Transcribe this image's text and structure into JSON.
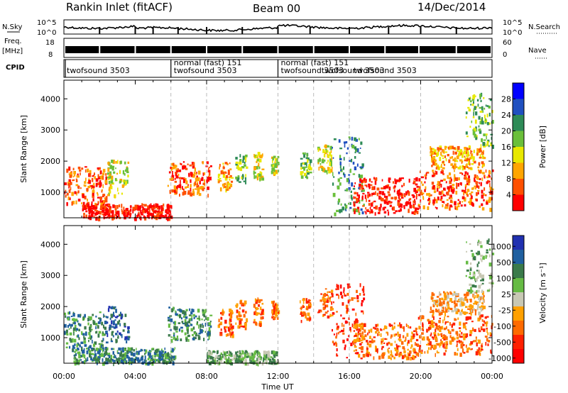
{
  "header": {
    "station": "Rankin Inlet (fitACF)",
    "beam": "Beam 00",
    "date": "14/Dec/2014"
  },
  "strip_labels": {
    "nsky": "N.Sky",
    "freq": "Freq.",
    "freq_unit": "[MHz]",
    "cpid": "CPID",
    "nsearch": "N.Search",
    "nave": "Nave",
    "nsky_top": "10^5",
    "nsky_bottom": "10^0",
    "nsearch_top": "10^5",
    "nsearch_bottom": "10^0",
    "freq_top": "18",
    "freq_bottom": "8",
    "nave_top": "60",
    "nave_bottom": "0"
  },
  "cpid_segments": [
    {
      "label": "twofsound 3503",
      "start_hour": 0.0
    },
    {
      "label": "normal (fast) 151",
      "start_hour": 6.0
    },
    {
      "label": "twofsound 3503",
      "start_hour": 6.0
    },
    {
      "label": "normal (fast) 151",
      "start_hour": 12.0
    },
    {
      "label": "twofsound 3503",
      "start_hour": 12.0
    },
    {
      "label": "twofsound 3503",
      "start_hour": 14.2
    },
    {
      "label": "twofsound 3503",
      "start_hour": 16.0
    }
  ],
  "chart_data": [
    {
      "type": "heatmap",
      "panel": "power",
      "ylabel": "Slant Range [km]",
      "xlabel": "",
      "xlim_hours": [
        0,
        24
      ],
      "ylim": [
        180,
        4600
      ],
      "x_ticks": [],
      "y_ticks": [
        1000,
        2000,
        3000,
        4000
      ],
      "colorbar": {
        "label": "Power [dB]",
        "ticks": [
          "4",
          "8",
          "12",
          "16",
          "20",
          "24",
          "28"
        ],
        "colors": [
          "#0000ff",
          "#2050c0",
          "#2e8b57",
          "#6abf3a",
          "#e8e800",
          "#ffa500",
          "#ff5000",
          "#ff0000"
        ]
      },
      "regions": [
        {
          "t0": 0.0,
          "t1": 2.4,
          "r0": 650,
          "r1": 1850,
          "level": 6
        },
        {
          "t0": 2.4,
          "t1": 3.6,
          "r0": 900,
          "r1": 2050,
          "level": 4
        },
        {
          "t0": 1.0,
          "t1": 6.0,
          "r0": 200,
          "r1": 650,
          "level": 7
        },
        {
          "t0": 5.8,
          "t1": 8.2,
          "r0": 950,
          "r1": 2000,
          "level": 6
        },
        {
          "t0": 8.6,
          "t1": 9.4,
          "r0": 1100,
          "r1": 2000,
          "level": 5
        },
        {
          "t0": 9.6,
          "t1": 10.2,
          "r0": 1350,
          "r1": 2250,
          "level": 3
        },
        {
          "t0": 10.6,
          "t1": 11.1,
          "r0": 1450,
          "r1": 2300,
          "level": 4
        },
        {
          "t0": 11.6,
          "t1": 12.0,
          "r0": 1600,
          "r1": 2200,
          "level": 4
        },
        {
          "t0": 13.2,
          "t1": 13.8,
          "r0": 1500,
          "r1": 2300,
          "level": 3
        },
        {
          "t0": 14.2,
          "t1": 15.0,
          "r0": 1700,
          "r1": 2600,
          "level": 4
        },
        {
          "t0": 15.0,
          "t1": 16.8,
          "r0": 350,
          "r1": 2800,
          "level": 2
        },
        {
          "t0": 16.2,
          "t1": 19.8,
          "r0": 350,
          "r1": 1500,
          "level": 7
        },
        {
          "t0": 19.8,
          "t1": 24.0,
          "r0": 500,
          "r1": 1750,
          "level": 6
        },
        {
          "t0": 20.5,
          "t1": 23.5,
          "r0": 1800,
          "r1": 2500,
          "level": 5
        },
        {
          "t0": 22.5,
          "t1": 24.0,
          "r0": 2500,
          "r1": 4200,
          "level": 3
        }
      ]
    },
    {
      "type": "heatmap",
      "panel": "velocity",
      "ylabel": "Slant Range [km]",
      "xlabel": "Time UT",
      "xlim_hours": [
        0,
        24
      ],
      "ylim": [
        180,
        4600
      ],
      "x_ticks": [
        "00:00",
        "04:00",
        "08:00",
        "12:00",
        "16:00",
        "20:00",
        "00:00"
      ],
      "y_ticks": [
        1000,
        2000,
        3000,
        4000
      ],
      "colorbar": {
        "label": "Velocity [m s⁻¹]",
        "ticks": [
          "1000",
          "500",
          "100",
          "25",
          "-25",
          "-100",
          "-500",
          "-1000"
        ],
        "colors": [
          "#2030b0",
          "#2060a0",
          "#3a7a4a",
          "#66bb44",
          "#c8c8b4",
          "#ffa000",
          "#ff6a00",
          "#ff2000",
          "#ff0000"
        ]
      },
      "regions": [
        {
          "t0": 0.0,
          "t1": 2.4,
          "r0": 650,
          "r1": 1850,
          "level": 2
        },
        {
          "t0": 2.4,
          "t1": 3.6,
          "r0": 900,
          "r1": 2050,
          "level": 1
        },
        {
          "t0": 0.5,
          "t1": 6.2,
          "r0": 200,
          "r1": 700,
          "level": 2
        },
        {
          "t0": 5.8,
          "t1": 8.2,
          "r0": 950,
          "r1": 2000,
          "level": 2
        },
        {
          "t0": 8.0,
          "t1": 12.0,
          "r0": 200,
          "r1": 600,
          "level": 3
        },
        {
          "t0": 8.6,
          "t1": 9.4,
          "r0": 1100,
          "r1": 2000,
          "level": 6
        },
        {
          "t0": 9.6,
          "t1": 10.2,
          "r0": 1350,
          "r1": 2250,
          "level": 6
        },
        {
          "t0": 10.6,
          "t1": 11.1,
          "r0": 1450,
          "r1": 2300,
          "level": 6
        },
        {
          "t0": 11.6,
          "t1": 12.0,
          "r0": 1600,
          "r1": 2200,
          "level": 6
        },
        {
          "t0": 13.2,
          "t1": 13.8,
          "r0": 1500,
          "r1": 2300,
          "level": 6
        },
        {
          "t0": 14.2,
          "t1": 15.0,
          "r0": 1700,
          "r1": 2600,
          "level": 6
        },
        {
          "t0": 15.0,
          "t1": 16.8,
          "r0": 350,
          "r1": 2800,
          "level": 7
        },
        {
          "t0": 16.2,
          "t1": 19.8,
          "r0": 350,
          "r1": 1500,
          "level": 6
        },
        {
          "t0": 19.8,
          "t1": 24.0,
          "r0": 500,
          "r1": 1750,
          "level": 6
        },
        {
          "t0": 20.5,
          "t1": 23.5,
          "r0": 1800,
          "r1": 2500,
          "level": 5
        },
        {
          "t0": 22.5,
          "t1": 24.0,
          "r0": 2500,
          "r1": 4200,
          "level": 3
        }
      ]
    }
  ]
}
